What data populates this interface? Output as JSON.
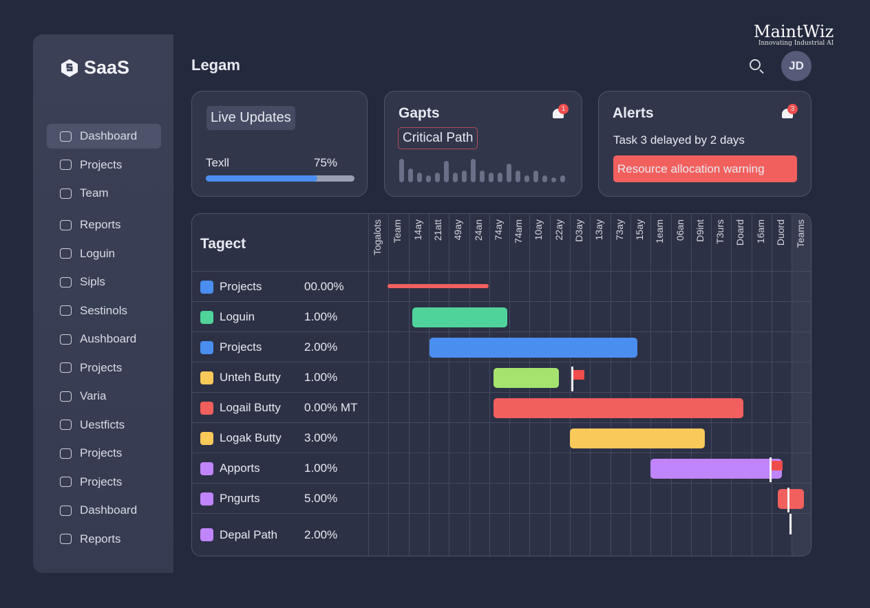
{
  "brand": {
    "name": "MaintWiz",
    "tagline": "Innovating Industrial AI"
  },
  "sidebar": {
    "logo": "SaaS",
    "items": [
      {
        "label": "Dashboard",
        "active": true
      },
      {
        "label": "Projects"
      },
      {
        "label": "Team"
      },
      {
        "label": "Reports"
      },
      {
        "label": "Loguin"
      },
      {
        "label": "Sipls"
      },
      {
        "label": "Sestinols"
      },
      {
        "label": "Aushboard"
      },
      {
        "label": "Projects"
      },
      {
        "label": "Varia"
      },
      {
        "label": "Uestficts"
      },
      {
        "label": "Projects"
      },
      {
        "label": "Projects"
      },
      {
        "label": "Dashboard"
      },
      {
        "label": "Reports"
      }
    ]
  },
  "header": {
    "title": "Legam",
    "avatar": "JD"
  },
  "cards": {
    "live": {
      "title": "Live Updates",
      "label": "Texll",
      "percent_label": "75%",
      "progress": 75
    },
    "gapts": {
      "title": "Gapts",
      "badge": "1",
      "chip": "Critical Path",
      "bars": [
        10,
        6,
        4,
        3,
        4,
        9,
        4,
        5,
        10,
        5,
        4,
        4,
        8,
        5,
        3,
        5,
        3,
        2,
        3
      ]
    },
    "alerts": {
      "title": "Alerts",
      "badge": "3",
      "message": "Task 3 delayed by 2 days",
      "warning": "Resource allocation warning"
    }
  },
  "gantt": {
    "title": "Tagect",
    "columns": [
      "Togalots",
      "Team",
      "14ay",
      "21att",
      "49ay",
      "24an",
      "74ay",
      "74am",
      "10ay",
      "22ay",
      "D3ay",
      "13ay",
      "73ay",
      "15ay",
      "1eam",
      "06an",
      "D9int",
      "T3urs",
      "Doard",
      "16am",
      "Duord",
      "Teams"
    ],
    "rows": [
      {
        "name": "Projects",
        "value": "00.00%",
        "color": "#4a8ff0",
        "bar": [
          0.96,
          5.97
        ],
        "bar_color": "#f2605e",
        "thin": true
      },
      {
        "name": "Loguin",
        "value": "1.00%",
        "color": "#4fd39a",
        "bar": [
          2.18,
          6.89
        ],
        "bar_color": "#4fd39a"
      },
      {
        "name": "Projects",
        "value": "2.00%",
        "color": "#4a8ff0",
        "bar": [
          3.04,
          13.35
        ],
        "bar_color": "#4a8ff0"
      },
      {
        "name": "Unteh Butty",
        "value": "1.00%",
        "color": "#f9c95a",
        "bar": [
          6.21,
          9.45
        ],
        "bar_color": "#a6e36e",
        "milestone": 10.07,
        "flag": true
      },
      {
        "name": "Logail Butty",
        "value": "0.00% MT",
        "color": "#f2605e",
        "bar": [
          6.21,
          18.6
        ],
        "bar_color": "#f2605e"
      },
      {
        "name": "Logak Butty",
        "value": "3.00%",
        "color": "#f9c95a",
        "bar": [
          10.0,
          16.7
        ],
        "bar_color": "#f9c95a"
      },
      {
        "name": "Apports",
        "value": "1.00%",
        "color": "#c084fc",
        "bar": [
          14.0,
          20.5
        ],
        "bar_color": "#c084fc",
        "milestone": 19.9,
        "flag": true
      },
      {
        "name": "Pngurts",
        "value": "5.00%",
        "color": "#c084fc",
        "bar": [
          20.3,
          21.6
        ],
        "bar_color": "#f2605e",
        "milestone": 20.8
      },
      {
        "name": "Depal Path",
        "value": "2.00%",
        "color": "#c084fc",
        "milestone": 20.9
      }
    ]
  }
}
